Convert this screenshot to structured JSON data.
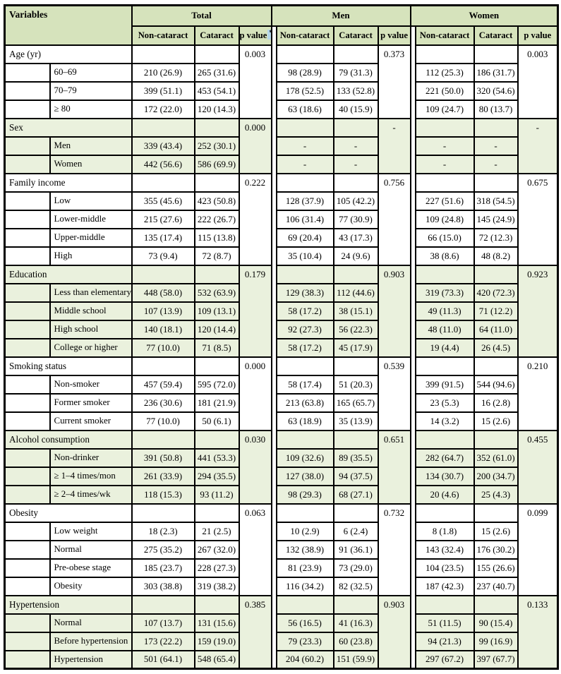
{
  "table": {
    "header": {
      "variables_label": "Variables",
      "group_labels": [
        "Total",
        "Men",
        "Women"
      ],
      "subheaders": [
        "Non-cataract",
        "Cataract",
        "p value"
      ],
      "total_p_asterisk": "*"
    },
    "colors": {
      "header_green": "#d6e3bc",
      "row_green": "#eaf1dd",
      "asterisk_highlight": "#b5d7ea",
      "border": "#000000"
    },
    "groups": [
      {
        "variable": "Age (yr)",
        "p": [
          "0.003",
          "0.373",
          "0.003"
        ],
        "items": [
          {
            "label": "60–69",
            "cells": [
              "210 (26.9)",
              "265 (31.6)",
              "98 (28.9)",
              "79 (31.3)",
              "112 (25.3)",
              "186 (31.7)"
            ]
          },
          {
            "label": "70–79",
            "cells": [
              "399 (51.1)",
              "453 (54.1)",
              "178 (52.5)",
              "133 (52.8)",
              "221 (50.0)",
              "320 (54.6)"
            ]
          },
          {
            "label": "≥ 80",
            "cells": [
              "172 (22.0)",
              "120 (14.3)",
              "63 (18.6)",
              "40 (15.9)",
              "109 (24.7)",
              "80 (13.7)"
            ]
          }
        ]
      },
      {
        "variable": "Sex",
        "p": [
          "0.000",
          "-",
          "-"
        ],
        "items": [
          {
            "label": "Men",
            "cells": [
              "339 (43.4)",
              "252 (30.1)",
              "-",
              "-",
              "-",
              "-"
            ]
          },
          {
            "label": "Women",
            "cells": [
              "442 (56.6)",
              "586 (69.9)",
              "-",
              "-",
              "-",
              "-"
            ]
          }
        ]
      },
      {
        "variable": "Family income",
        "p": [
          "0.222",
          "0.756",
          "0.675"
        ],
        "items": [
          {
            "label": "Low",
            "cells": [
              "355 (45.6)",
              "423 (50.8)",
              "128 (37.9)",
              "105 (42.2)",
              "227 (51.6)",
              "318 (54.5)"
            ]
          },
          {
            "label": "Lower-middle",
            "cells": [
              "215 (27.6)",
              "222 (26.7)",
              "106 (31.4)",
              "77 (30.9)",
              "109 (24.8)",
              "145 (24.9)"
            ]
          },
          {
            "label": "Upper-middle",
            "cells": [
              "135 (17.4)",
              "115 (13.8)",
              "69 (20.4)",
              "43 (17.3)",
              "66 (15.0)",
              "72 (12.3)"
            ]
          },
          {
            "label": "High",
            "cells": [
              "73 (9.4)",
              "72 (8.7)",
              "35 (10.4)",
              "24 (9.6)",
              "38 (8.6)",
              "48 (8.2)"
            ]
          }
        ]
      },
      {
        "variable": "Education",
        "p": [
          "0.179",
          "0.903",
          "0.923"
        ],
        "items": [
          {
            "label": "Less than elementary",
            "cells": [
              "448 (58.0)",
              "532 (63.9)",
              "129 (38.3)",
              "112 (44.6)",
              "319 (73.3)",
              "420 (72.3)"
            ]
          },
          {
            "label": "Middle school",
            "cells": [
              "107 (13.9)",
              "109 (13.1)",
              "58 (17.2)",
              "38 (15.1)",
              "49 (11.3)",
              "71 (12.2)"
            ]
          },
          {
            "label": "High school",
            "cells": [
              "140 (18.1)",
              "120 (14.4)",
              "92 (27.3)",
              "56 (22.3)",
              "48 (11.0)",
              "64 (11.0)"
            ]
          },
          {
            "label": "College or higher",
            "cells": [
              "77 (10.0)",
              "71 (8.5)",
              "58 (17.2)",
              "45 (17.9)",
              "19 (4.4)",
              "26 (4.5)"
            ]
          }
        ]
      },
      {
        "variable": "Smoking status",
        "p": [
          "0.000",
          "0.539",
          "0.210"
        ],
        "items": [
          {
            "label": "Non-smoker",
            "cells": [
              "457 (59.4)",
              "595 (72.0)",
              "58 (17.4)",
              "51 (20.3)",
              "399 (91.5)",
              "544 (94.6)"
            ]
          },
          {
            "label": "Former smoker",
            "cells": [
              "236 (30.6)",
              "181 (21.9)",
              "213 (63.8)",
              "165 (65.7)",
              "23 (5.3)",
              "16 (2.8)"
            ]
          },
          {
            "label": "Current smoker",
            "cells": [
              "77 (10.0)",
              "50 (6.1)",
              "63 (18.9)",
              "35 (13.9)",
              "14 (3.2)",
              "15 (2.6)"
            ]
          }
        ]
      },
      {
        "variable": "Alcohol consumption",
        "p": [
          "0.030",
          "0.651",
          "0.455"
        ],
        "items": [
          {
            "label": "Non-drinker",
            "cells": [
              "391 (50.8)",
              "441 (53.3)",
              "109 (32.6)",
              "89 (35.5)",
              "282 (64.7)",
              "352 (61.0)"
            ]
          },
          {
            "label": "≥ 1–4 times/mon",
            "cells": [
              "261 (33.9)",
              "294 (35.5)",
              "127 (38.0)",
              "94 (37.5)",
              "134 (30.7)",
              "200 (34.7)"
            ]
          },
          {
            "label": "≥ 2–4 times/wk",
            "cells": [
              "118 (15.3)",
              "93 (11.2)",
              "98 (29.3)",
              "68 (27.1)",
              "20 (4.6)",
              "25 (4.3)"
            ]
          }
        ]
      },
      {
        "variable": "Obesity",
        "p": [
          "0.063",
          "0.732",
          "0.099"
        ],
        "items": [
          {
            "label": "Low weight",
            "cells": [
              "18 (2.3)",
              "21 (2.5)",
              "10 (2.9)",
              "6 (2.4)",
              "8 (1.8)",
              "15 (2.6)"
            ]
          },
          {
            "label": "Normal",
            "cells": [
              "275 (35.2)",
              "267 (32.0)",
              "132 (38.9)",
              "91 (36.1)",
              "143 (32.4)",
              "176 (30.2)"
            ]
          },
          {
            "label": "Pre-obese stage",
            "cells": [
              "185 (23.7)",
              "228 (27.3)",
              "81 (23.9)",
              "73 (29.0)",
              "104 (23.5)",
              "155 (26.6)"
            ]
          },
          {
            "label": "Obesity",
            "cells": [
              "303 (38.8)",
              "319 (38.2)",
              "116 (34.2)",
              "82 (32.5)",
              "187 (42.3)",
              "237 (40.7)"
            ]
          }
        ]
      },
      {
        "variable": "Hypertension",
        "p": [
          "0.385",
          "0.903",
          "0.133"
        ],
        "items": [
          {
            "label": "Normal",
            "cells": [
              "107 (13.7)",
              "131 (15.6)",
              "56 (16.5)",
              "41 (16.3)",
              "51 (11.5)",
              "90 (15.4)"
            ]
          },
          {
            "label": "Before hypertension",
            "cells": [
              "173 (22.2)",
              "159 (19.0)",
              "79 (23.3)",
              "60 (23.8)",
              "94 (21.3)",
              "99 (16.9)"
            ]
          },
          {
            "label": "Hypertension",
            "cells": [
              "501 (64.1)",
              "548 (65.4)",
              "204 (60.2)",
              "151 (59.9)",
              "297 (67.2)",
              "397 (67.7)"
            ]
          }
        ]
      }
    ]
  }
}
